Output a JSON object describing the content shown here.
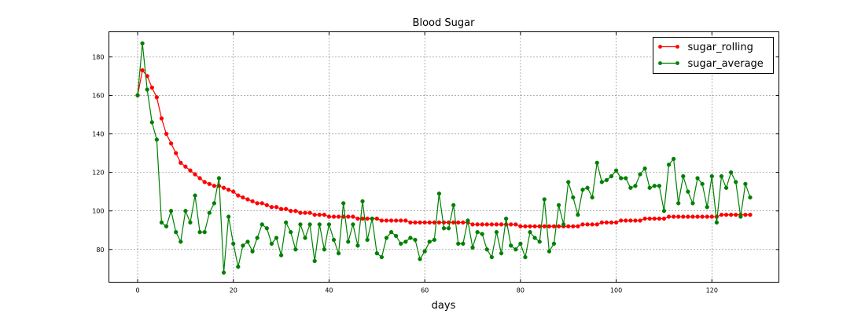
{
  "chart_data": {
    "type": "line",
    "title": "Blood Sugar",
    "xlabel": "days",
    "ylabel": "",
    "xlim": [
      -6,
      134
    ],
    "ylim": [
      63,
      193
    ],
    "xticks": [
      0,
      20,
      40,
      60,
      80,
      100,
      120
    ],
    "yticks": [
      80,
      100,
      120,
      140,
      160,
      180
    ],
    "grid": true,
    "legend_position": "top-right",
    "series": [
      {
        "name": "sugar_rolling",
        "color": "#ff0000",
        "values": [
          160,
          173,
          170,
          164,
          159,
          148,
          140,
          135,
          130,
          125,
          123,
          121,
          119,
          117,
          115,
          114,
          113,
          113,
          112,
          111,
          110,
          108,
          107,
          106,
          105,
          104,
          104,
          103,
          102,
          102,
          101,
          101,
          100,
          100,
          99,
          99,
          99,
          98,
          98,
          98,
          97,
          97,
          97,
          97,
          97,
          97,
          96,
          96,
          96,
          96,
          96,
          95,
          95,
          95,
          95,
          95,
          95,
          94,
          94,
          94,
          94,
          94,
          94,
          94,
          94,
          94,
          94,
          94,
          94,
          94,
          93,
          93,
          93,
          93,
          93,
          93,
          93,
          93,
          93,
          93,
          92,
          92,
          92,
          92,
          92,
          92,
          92,
          92,
          92,
          92,
          92,
          92,
          92,
          93,
          93,
          93,
          93,
          94,
          94,
          94,
          94,
          95,
          95,
          95,
          95,
          95,
          96,
          96,
          96,
          96,
          96,
          97,
          97,
          97,
          97,
          97,
          97,
          97,
          97,
          97,
          97,
          97,
          98,
          98,
          98,
          98,
          98,
          98,
          98
        ]
      },
      {
        "name": "sugar_average",
        "color": "#008000",
        "values": [
          160,
          187,
          163,
          146,
          137,
          94,
          92,
          100,
          89,
          84,
          100,
          94,
          108,
          89,
          89,
          99,
          104,
          117,
          68,
          97,
          83,
          71,
          82,
          84,
          79,
          86,
          93,
          91,
          83,
          86,
          77,
          94,
          89,
          80,
          93,
          86,
          93,
          74,
          93,
          80,
          93,
          85,
          78,
          104,
          84,
          93,
          82,
          105,
          85,
          96,
          78,
          76,
          86,
          89,
          87,
          83,
          84,
          86,
          85,
          75,
          79,
          84,
          85,
          109,
          91,
          91,
          103,
          83,
          83,
          95,
          81,
          89,
          88,
          80,
          76,
          89,
          78,
          96,
          82,
          80,
          83,
          76,
          89,
          86,
          84,
          106,
          79,
          83,
          103,
          93,
          115,
          107,
          98,
          111,
          112,
          107,
          125,
          115,
          116,
          118,
          121,
          117,
          117,
          112,
          113,
          119,
          122,
          112,
          113,
          113,
          100,
          124,
          127,
          104,
          118,
          110,
          104,
          117,
          114,
          102,
          118,
          94,
          118,
          112,
          120,
          115,
          97,
          114,
          107
        ]
      }
    ]
  }
}
